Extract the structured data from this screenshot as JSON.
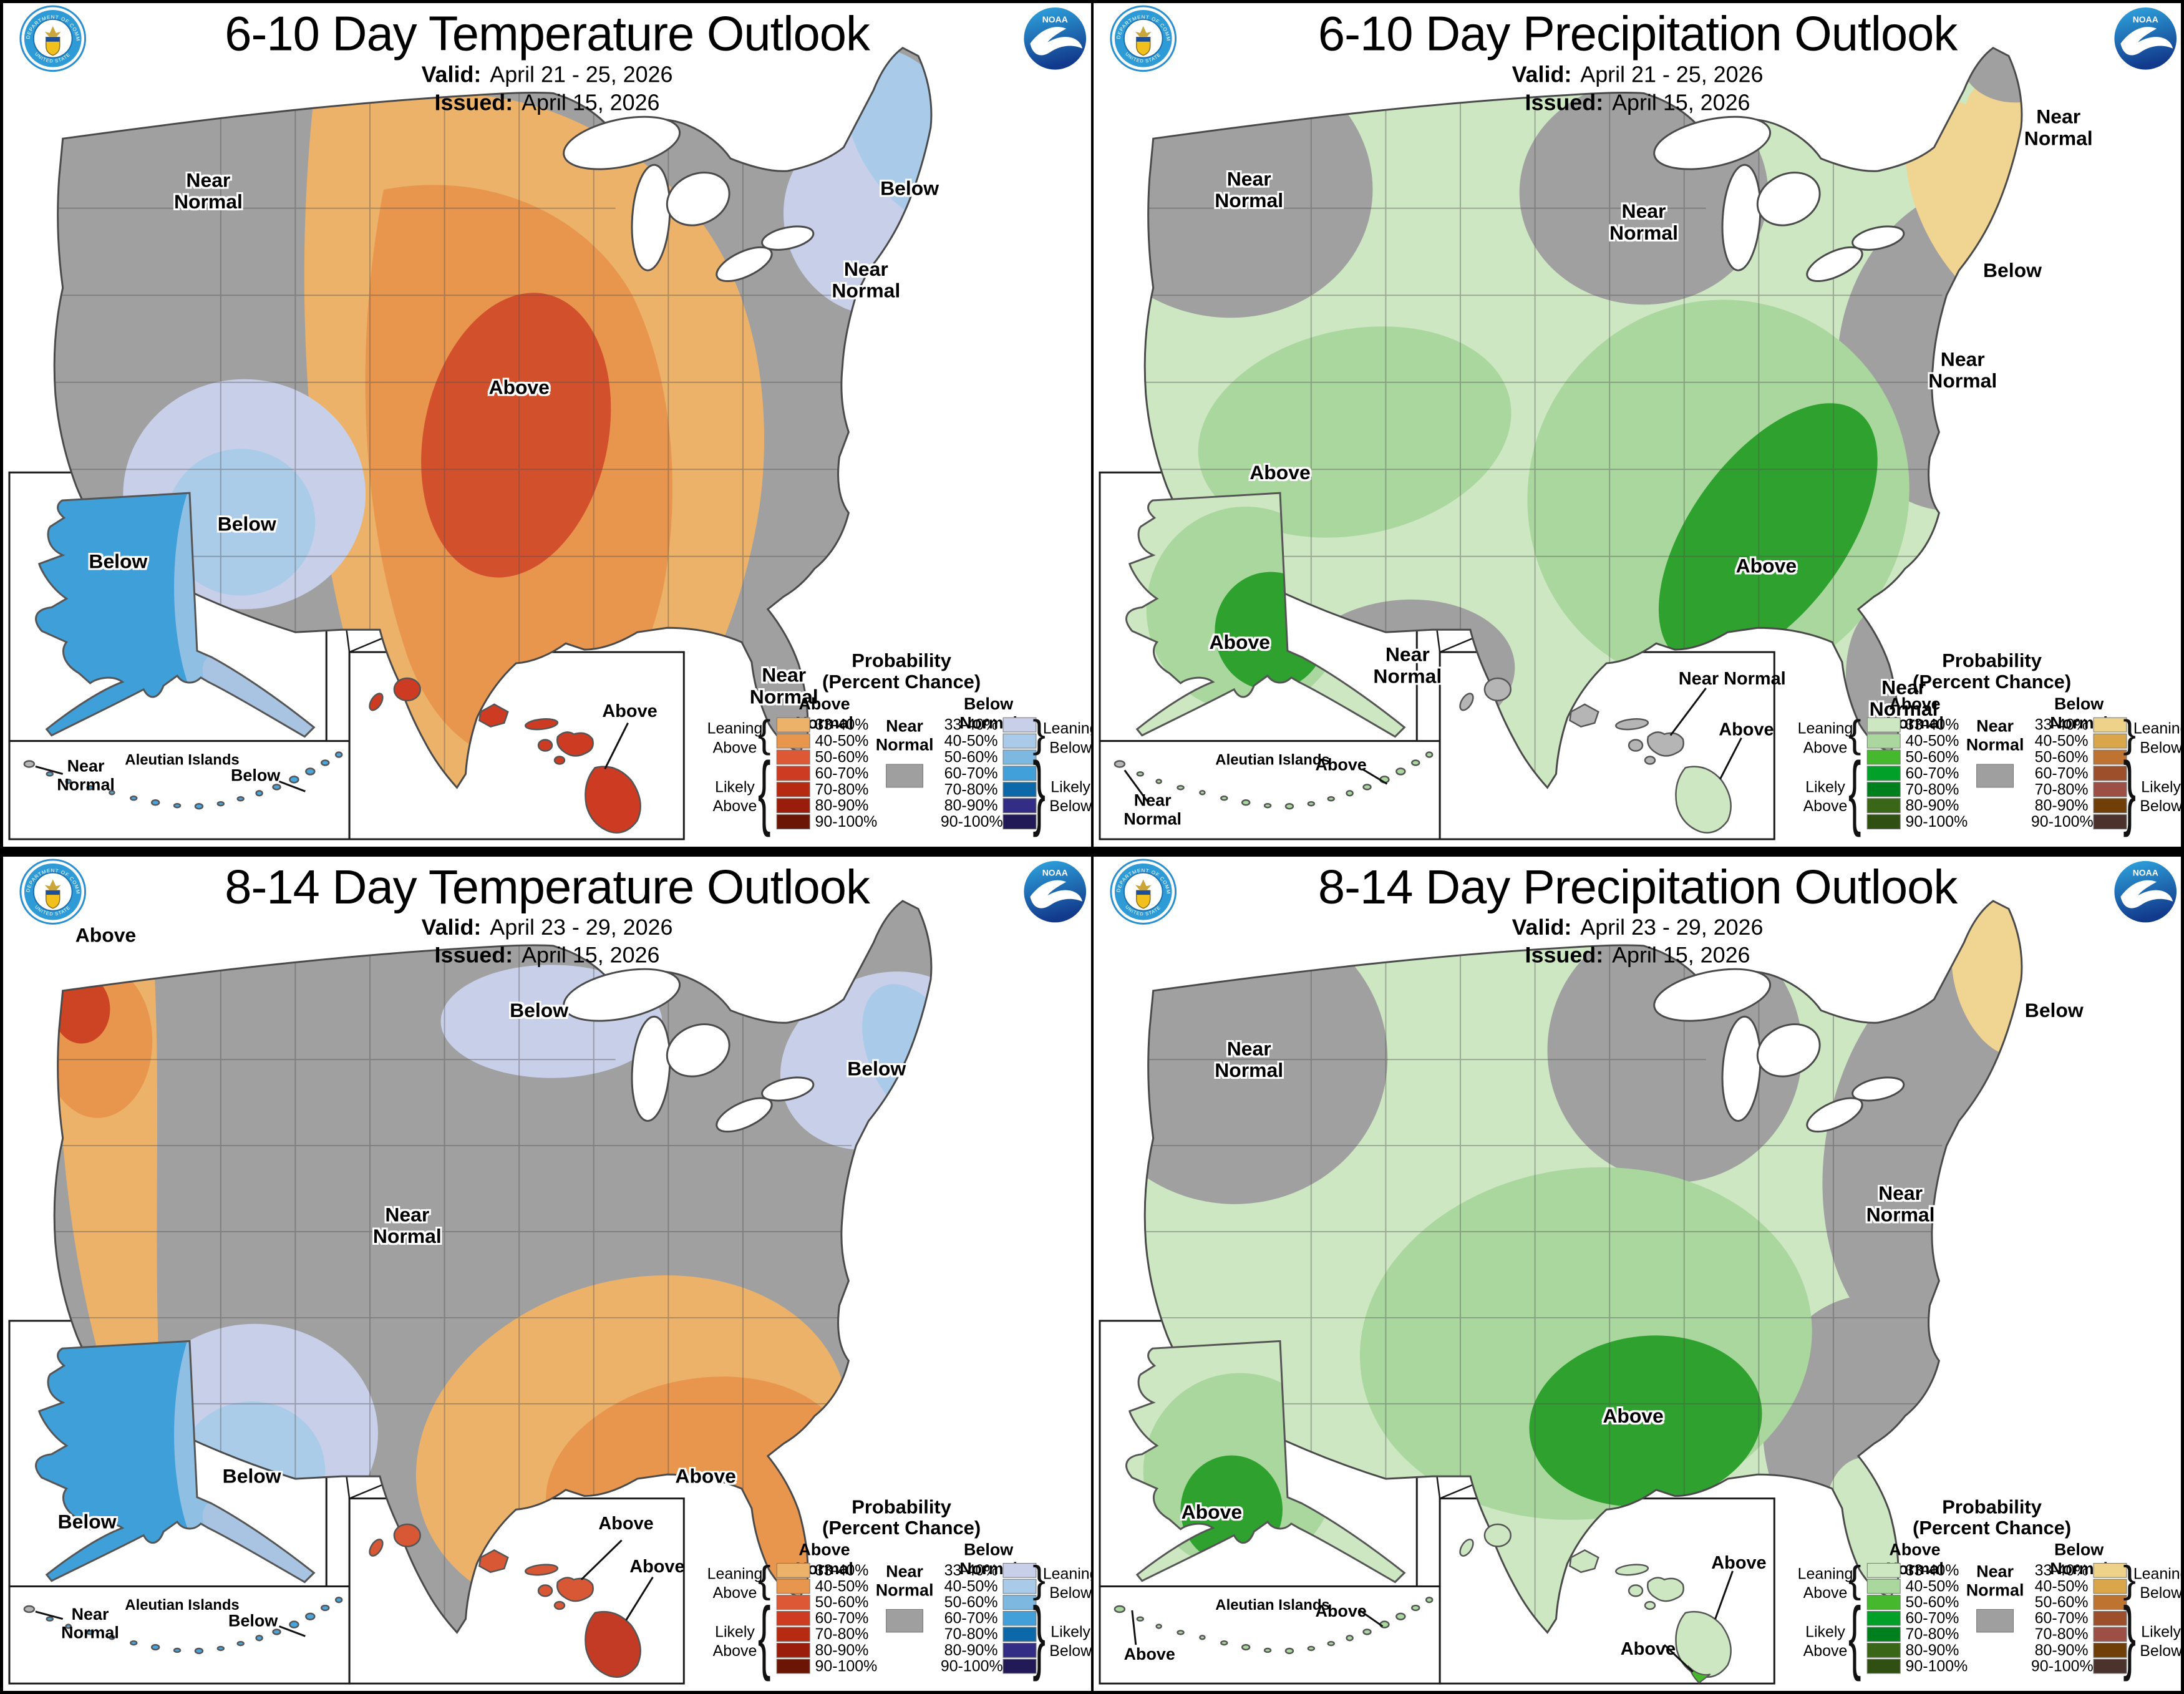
{
  "colors": {
    "near_normal": "#9f9f9f",
    "temp_above": [
      "#ecb269",
      "#e8954e",
      "#dd5936",
      "#cc3b22",
      "#b52a10",
      "#9a1c0a",
      "#6b1506"
    ],
    "temp_below": [
      "#c8cfe9",
      "#a9cbe9",
      "#7db8e0",
      "#41a0da",
      "#0c69a9",
      "#342d85",
      "#221a56"
    ],
    "precip_above": [
      "#cde7c2",
      "#a9d79e",
      "#46b82e",
      "#00a029",
      "#00801d",
      "#3a6618",
      "#2f5012"
    ],
    "precip_below": [
      "#eed289",
      "#d9a74a",
      "#bf7330",
      "#9d4f2c",
      "#9e4f45",
      "#703f08",
      "#4c322c"
    ]
  },
  "logos": {
    "noaa_text": "NOAA",
    "commerce_top": "DEPARTMENT OF COMMERCE",
    "commerce_bottom": "UNITED STATES OF AMERICA"
  },
  "legend_common": {
    "title": "Probability",
    "subtitle": "(Percent Chance)",
    "above_header": "Above Normal",
    "below_header": "Below Normal",
    "near_normal": "Near Normal",
    "leaning": "Leaning",
    "likely": "Likely",
    "above_word": "Above",
    "below_word": "Below",
    "ranges": [
      "33-40%",
      "40-50%",
      "50-60%",
      "60-70%",
      "70-80%",
      "80-90%",
      "90-100%"
    ]
  },
  "panels": [
    {
      "title": "6-10 Day Temperature Outlook",
      "valid_label": "Valid:",
      "valid_value": "April 21 - 25, 2026",
      "issued_label": "Issued:",
      "issued_value": "April 15, 2026",
      "conus_labels": [
        {
          "text": "Near Normal"
        },
        {
          "text": "Above"
        },
        {
          "text": "Below"
        },
        {
          "text": "Near Normal"
        },
        {
          "text": "Below"
        },
        {
          "text": "Near Normal"
        }
      ],
      "alaska_label": "Below",
      "aleutian_left": "Near Normal",
      "aleutian_title": "Aleutian Islands",
      "aleutian_right": "Below",
      "hawaii_labels": [
        {
          "text": "Above"
        }
      ]
    },
    {
      "title": "6-10 Day Precipitation Outlook",
      "valid_label": "Valid:",
      "valid_value": "April 21 - 25, 2026",
      "issued_label": "Issued:",
      "issued_value": "April 15, 2026",
      "conus_labels": [
        {
          "text": "Near Normal"
        },
        {
          "text": "Near Normal"
        },
        {
          "text": "Near Normal"
        },
        {
          "text": "Below"
        },
        {
          "text": "Near Normal"
        },
        {
          "text": "Above"
        },
        {
          "text": "Near Normal"
        },
        {
          "text": "Above"
        },
        {
          "text": "Near Normal"
        }
      ],
      "alaska_label": "Above",
      "aleutian_left": "Near Normal",
      "aleutian_title": "Aleutian Islands",
      "aleutian_right": "Above",
      "hawaii_labels": [
        {
          "text": "Near Normal"
        },
        {
          "text": "Above"
        }
      ]
    },
    {
      "title": "8-14 Day Temperature Outlook",
      "valid_label": "Valid:",
      "valid_value": "April 23 - 29, 2026",
      "issued_label": "Issued:",
      "issued_value": "April 15, 2026",
      "conus_labels": [
        {
          "text": "Above"
        },
        {
          "text": "Below"
        },
        {
          "text": "Near Normal"
        },
        {
          "text": "Below"
        },
        {
          "text": "Above"
        },
        {
          "text": "Below"
        }
      ],
      "alaska_label": "Below",
      "aleutian_left": "Near Normal",
      "aleutian_title": "Aleutian Islands",
      "aleutian_right": "Below",
      "hawaii_labels": [
        {
          "text": "Above"
        },
        {
          "text": "Above"
        }
      ]
    },
    {
      "title": "8-14 Day Precipitation Outlook",
      "valid_label": "Valid:",
      "valid_value": "April 23 - 29, 2026",
      "issued_label": "Issued:",
      "issued_value": "April 15, 2026",
      "conus_labels": [
        {
          "text": "Near Normal"
        },
        {
          "text": "Below"
        },
        {
          "text": "Near Normal"
        },
        {
          "text": "Above"
        }
      ],
      "alaska_label": "Above",
      "aleutian_left": "Above",
      "aleutian_title": "Aleutian Islands",
      "aleutian_right": "Above",
      "hawaii_labels": [
        {
          "text": "Above"
        },
        {
          "text": "Above"
        }
      ]
    }
  ]
}
